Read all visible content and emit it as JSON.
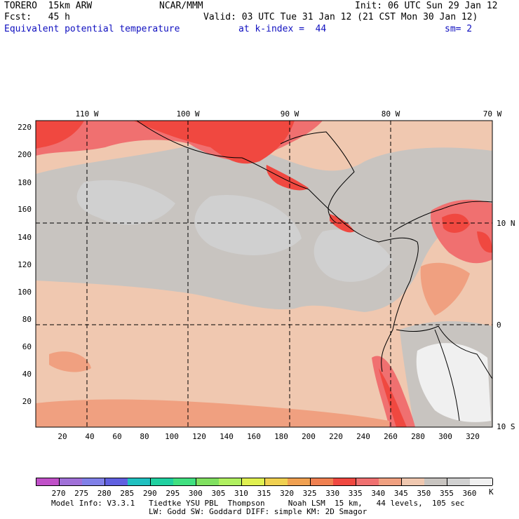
{
  "header": {
    "model": "TORERO  15km ARW",
    "org": "NCAR/MMM",
    "init": "Init: 06 UTC Sun 29 Jan 12",
    "fcst": "Fcst:   45 h",
    "valid": "Valid: 03 UTC Tue 31 Jan 12 (21 CST Mon 30 Jan 12)",
    "field": "Equivalent potential temperature",
    "level": "at k-index =  44",
    "smooth": "sm= 2"
  },
  "map": {
    "lon_labels": [
      "110 W",
      "100 W",
      "90 W",
      "80 W",
      "70 W"
    ],
    "lat_labels": [
      "10 N",
      "0",
      "10 S"
    ],
    "y_ticks": [
      "220",
      "200",
      "180",
      "160",
      "140",
      "120",
      "100",
      "80",
      "60",
      "40",
      "20"
    ],
    "x_ticks": [
      "20",
      "40",
      "60",
      "80",
      "100",
      "120",
      "140",
      "160",
      "180",
      "200",
      "220",
      "240",
      "260",
      "280",
      "300",
      "320"
    ]
  },
  "colorbar": {
    "labels": [
      "270",
      "275",
      "280",
      "285",
      "290",
      "295",
      "300",
      "305",
      "310",
      "315",
      "320",
      "325",
      "330",
      "335",
      "340",
      "345",
      "350",
      "355",
      "360"
    ],
    "unit": "K",
    "colors": [
      "#c050c8",
      "#a070d8",
      "#8080e8",
      "#6060e0",
      "#20c0c0",
      "#20d0a0",
      "#40e080",
      "#80e060",
      "#b0f060",
      "#e0f050",
      "#f0d050",
      "#f0a050",
      "#f08050",
      "#f04840",
      "#f07070",
      "#f0a080",
      "#f0c8b0",
      "#c8c4c0",
      "#d0d0d0",
      "#f0f0f0"
    ]
  },
  "footer": {
    "line1": "Model Info: V3.3.1   Tiedtke YSU PBL  Thompson     Noah LSM  15 km,   44 levels,  105 sec",
    "line2": "LW: Godd SW: Goddard DIFF: simple KM: 2D Smagor"
  }
}
